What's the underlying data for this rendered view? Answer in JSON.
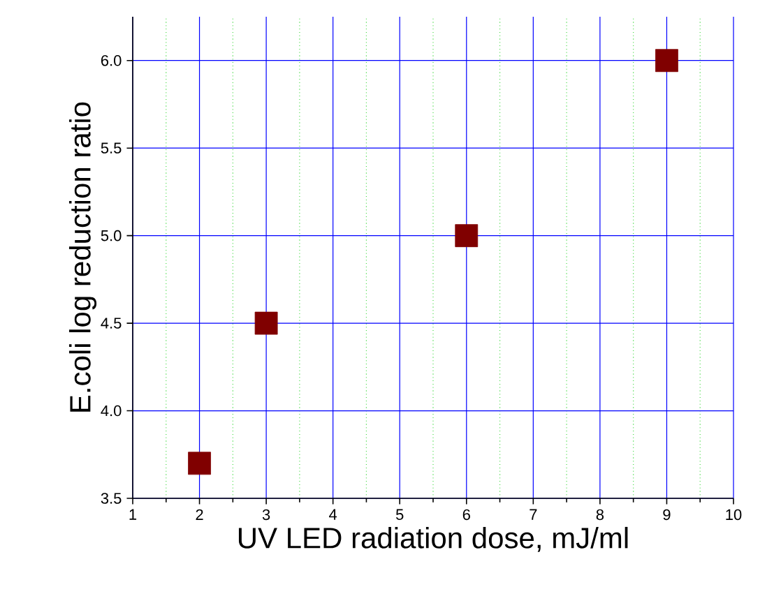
{
  "chart_data": {
    "type": "scatter",
    "xlabel": "UV LED radiation dose, mJ/ml",
    "ylabel": "E.coli log reduction ratio",
    "x": [
      2,
      3,
      6,
      9
    ],
    "values": [
      3.7,
      4.5,
      5.0,
      6.0
    ],
    "color": "#800000",
    "marker": "square",
    "grid": true,
    "xlim": [
      1,
      10
    ],
    "xticks": [
      1,
      {
        "value": 1.5,
        "label": null
      },
      2,
      {
        "value": 2.5,
        "label": null
      },
      3,
      {
        "value": 3.5,
        "label": null
      },
      4,
      {
        "value": 4.5,
        "label": null
      },
      5,
      {
        "value": 5.5,
        "label": null
      },
      6,
      {
        "value": 6.5,
        "label": null
      },
      7,
      {
        "value": 7.5,
        "label": null
      },
      8,
      {
        "value": 8.5,
        "label": null
      },
      9,
      {
        "value": 9.5,
        "label": null
      },
      10
    ],
    "ylim": [
      3.5,
      6.25
    ],
    "yticks": [
      {
        "value": 3.5,
        "label": "3.5"
      },
      {
        "value": 4.0,
        "label": "4.0"
      },
      {
        "value": 4.5,
        "label": "4.5"
      },
      {
        "value": 5.0,
        "label": "5.0"
      },
      {
        "value": 5.5,
        "label": "5.5"
      },
      {
        "value": 6.0,
        "label": "6.0"
      }
    ]
  }
}
